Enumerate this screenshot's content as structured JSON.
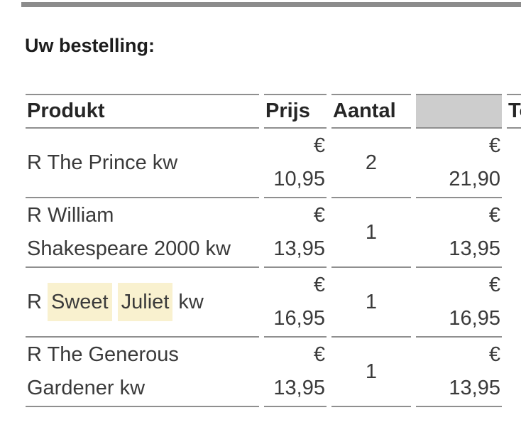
{
  "heading": "Uw bestelling:",
  "colors": {
    "top_bar": "#8c8c8c",
    "table_border": "#8f8f8f",
    "empty_header_bg": "#cdcdcd",
    "search_highlight": "#f9f1cf"
  },
  "table": {
    "columns": [
      {
        "id": "product",
        "label": "Produkt"
      },
      {
        "id": "price",
        "label": "Prijs"
      },
      {
        "id": "quantity",
        "label": "Aantal"
      },
      {
        "id": "row_total",
        "label": ""
      },
      {
        "id": "grand_total",
        "label": "Totaal"
      }
    ],
    "rows": [
      {
        "product_parts": [
          {
            "text": "R The Prince kw",
            "highlight": false
          }
        ],
        "price": "€ 10,95",
        "quantity": "2",
        "row_total": "€ 21,90"
      },
      {
        "product_parts": [
          {
            "text": "R William Shakespeare 2000 kw",
            "highlight": false
          }
        ],
        "price": "€ 13,95",
        "quantity": "1",
        "row_total": "€ 13,95"
      },
      {
        "product_parts": [
          {
            "text": "R ",
            "highlight": false
          },
          {
            "text": "Sweet",
            "highlight": true
          },
          {
            "text": " ",
            "highlight": false
          },
          {
            "text": "Juliet",
            "highlight": true
          },
          {
            "text": " kw",
            "highlight": false
          }
        ],
        "price": "€ 16,95",
        "quantity": "1",
        "row_total": "€ 16,95"
      },
      {
        "product_parts": [
          {
            "text": "R The Generous Gardener kw",
            "highlight": false
          }
        ],
        "price": "€ 13,95",
        "quantity": "1",
        "row_total": "€ 13,95"
      }
    ]
  }
}
